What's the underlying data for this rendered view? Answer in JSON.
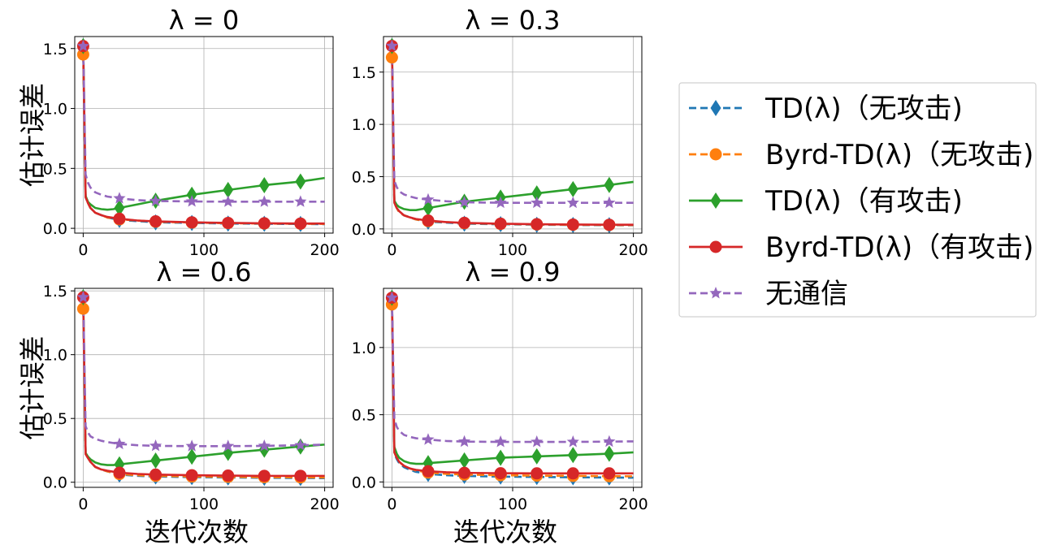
{
  "colors": {
    "td_no_attack": "#1f77b4",
    "byrd_no_attack": "#ff7f0e",
    "td_attack": "#2ca02c",
    "byrd_attack": "#d62728",
    "no_comm": "#9467bd"
  },
  "legend": {
    "items": [
      {
        "label": "TD(λ)（无攻击)",
        "color": "#1f77b4",
        "marker": "diamond",
        "dash": true
      },
      {
        "label": "Byrd-TD(λ)（无攻击)",
        "color": "#ff7f0e",
        "marker": "circle",
        "dash": true
      },
      {
        "label": "TD(λ)（有攻击)",
        "color": "#2ca02c",
        "marker": "diamond",
        "dash": false
      },
      {
        "label": "Byrd-TD(λ)（有攻击)",
        "color": "#d62728",
        "marker": "circle",
        "dash": false
      },
      {
        "label": "无通信",
        "color": "#9467bd",
        "marker": "star",
        "dash": true
      }
    ]
  },
  "chart_data": [
    {
      "type": "line",
      "title": "λ = 0",
      "ylabel": "估计误差",
      "xlabel": "",
      "xlim": [
        -7,
        207
      ],
      "ylim": [
        -0.04,
        1.6
      ],
      "xticks": [
        0,
        100,
        200
      ],
      "yticks": [
        0.0,
        0.5,
        1.0,
        1.5
      ],
      "xtick_labels": [
        "0",
        "100",
        "200"
      ],
      "ytick_labels": [
        "0.0",
        "0.5",
        "1.0",
        "1.5"
      ],
      "grid": true,
      "marker_x": [
        0,
        30,
        60,
        90,
        120,
        150,
        180
      ],
      "series": [
        {
          "name": "TD(λ)（无攻击)",
          "x": [
            0,
            2,
            4,
            6,
            10,
            15,
            20,
            30,
            45,
            60,
            90,
            120,
            150,
            180,
            200
          ],
          "y": [
            1.52,
            0.26,
            0.21,
            0.17,
            0.13,
            0.11,
            0.09,
            0.07,
            0.06,
            0.05,
            0.045,
            0.04,
            0.038,
            0.036,
            0.035
          ]
        },
        {
          "name": "Byrd-TD(λ)（无攻击)",
          "x": [
            0,
            2,
            4,
            6,
            10,
            15,
            20,
            30,
            45,
            60,
            90,
            120,
            150,
            180,
            200
          ],
          "y": [
            1.45,
            0.26,
            0.21,
            0.17,
            0.13,
            0.11,
            0.09,
            0.075,
            0.065,
            0.055,
            0.048,
            0.043,
            0.04,
            0.038,
            0.037
          ]
        },
        {
          "name": "TD(λ)（有攻击)",
          "x": [
            0,
            2,
            4,
            6,
            10,
            15,
            20,
            25,
            30,
            45,
            60,
            90,
            120,
            150,
            180,
            200
          ],
          "y": [
            1.52,
            0.27,
            0.22,
            0.2,
            0.17,
            0.16,
            0.155,
            0.16,
            0.17,
            0.2,
            0.23,
            0.28,
            0.32,
            0.36,
            0.39,
            0.42
          ]
        },
        {
          "name": "Byrd-TD(λ)（有攻击)",
          "x": [
            0,
            2,
            4,
            6,
            10,
            15,
            20,
            30,
            45,
            60,
            90,
            120,
            150,
            180,
            200
          ],
          "y": [
            1.52,
            0.26,
            0.21,
            0.17,
            0.13,
            0.11,
            0.095,
            0.08,
            0.065,
            0.058,
            0.05,
            0.045,
            0.042,
            0.04,
            0.04
          ]
        },
        {
          "name": "无通信",
          "x": [
            0,
            2,
            4,
            6,
            10,
            15,
            20,
            30,
            45,
            60,
            90,
            120,
            150,
            180,
            200
          ],
          "y": [
            1.52,
            0.45,
            0.38,
            0.34,
            0.3,
            0.28,
            0.265,
            0.25,
            0.235,
            0.228,
            0.224,
            0.222,
            0.222,
            0.222,
            0.222
          ]
        }
      ]
    },
    {
      "type": "line",
      "title": "λ = 0.3",
      "ylabel": "",
      "xlabel": "",
      "xlim": [
        -7,
        207
      ],
      "ylim": [
        -0.04,
        1.84
      ],
      "xticks": [
        0,
        100,
        200
      ],
      "yticks": [
        0.0,
        0.5,
        1.0,
        1.5
      ],
      "xtick_labels": [
        "0",
        "100",
        "200"
      ],
      "ytick_labels": [
        "0.0",
        "0.5",
        "1.0",
        "1.5"
      ],
      "grid": true,
      "marker_x": [
        0,
        30,
        60,
        90,
        120,
        150,
        180
      ],
      "series": [
        {
          "name": "TD(λ)（无攻击)",
          "x": [
            0,
            2,
            4,
            6,
            10,
            15,
            20,
            30,
            45,
            60,
            90,
            120,
            150,
            180,
            200
          ],
          "y": [
            1.75,
            0.25,
            0.2,
            0.16,
            0.13,
            0.11,
            0.09,
            0.07,
            0.06,
            0.05,
            0.045,
            0.04,
            0.038,
            0.036,
            0.035
          ]
        },
        {
          "name": "Byrd-TD(λ)（无攻击)",
          "x": [
            0,
            2,
            4,
            6,
            10,
            15,
            20,
            30,
            45,
            60,
            90,
            120,
            150,
            180,
            200
          ],
          "y": [
            1.64,
            0.25,
            0.2,
            0.16,
            0.13,
            0.11,
            0.09,
            0.075,
            0.065,
            0.055,
            0.048,
            0.043,
            0.04,
            0.038,
            0.037
          ]
        },
        {
          "name": "TD(λ)（有攻击)",
          "x": [
            0,
            2,
            4,
            6,
            10,
            15,
            20,
            25,
            30,
            45,
            60,
            90,
            120,
            150,
            180,
            200
          ],
          "y": [
            1.75,
            0.27,
            0.23,
            0.21,
            0.19,
            0.18,
            0.18,
            0.19,
            0.2,
            0.23,
            0.26,
            0.3,
            0.34,
            0.38,
            0.42,
            0.45
          ]
        },
        {
          "name": "Byrd-TD(λ)（有攻击)",
          "x": [
            0,
            2,
            4,
            6,
            10,
            15,
            20,
            30,
            45,
            60,
            90,
            120,
            150,
            180,
            200
          ],
          "y": [
            1.75,
            0.25,
            0.2,
            0.17,
            0.13,
            0.11,
            0.095,
            0.08,
            0.065,
            0.058,
            0.05,
            0.045,
            0.042,
            0.04,
            0.04
          ]
        },
        {
          "name": "无通信",
          "x": [
            0,
            2,
            4,
            6,
            10,
            15,
            20,
            30,
            45,
            60,
            90,
            120,
            150,
            180,
            200
          ],
          "y": [
            1.75,
            0.46,
            0.4,
            0.36,
            0.33,
            0.31,
            0.295,
            0.28,
            0.265,
            0.255,
            0.25,
            0.25,
            0.25,
            0.25,
            0.25
          ]
        }
      ]
    },
    {
      "type": "line",
      "title": "λ = 0.6",
      "ylabel": "估计误差",
      "xlabel": "迭代次数",
      "xlim": [
        -7,
        207
      ],
      "ylim": [
        -0.04,
        1.52
      ],
      "xticks": [
        0,
        100,
        200
      ],
      "yticks": [
        0.0,
        0.5,
        1.0,
        1.5
      ],
      "xtick_labels": [
        "0",
        "100",
        "200"
      ],
      "ytick_labels": [
        "0.0",
        "0.5",
        "1.0",
        "1.5"
      ],
      "grid": true,
      "marker_x": [
        0,
        30,
        60,
        90,
        120,
        150,
        180
      ],
      "series": [
        {
          "name": "TD(λ)（无攻击)",
          "x": [
            0,
            2,
            4,
            6,
            10,
            15,
            20,
            30,
            45,
            60,
            90,
            120,
            150,
            180,
            200
          ],
          "y": [
            1.45,
            0.22,
            0.19,
            0.16,
            0.12,
            0.1,
            0.085,
            0.06,
            0.05,
            0.045,
            0.04,
            0.037,
            0.035,
            0.033,
            0.032
          ]
        },
        {
          "name": "Byrd-TD(λ)（无攻击)",
          "x": [
            0,
            2,
            4,
            6,
            10,
            15,
            20,
            30,
            45,
            60,
            90,
            120,
            150,
            180,
            200
          ],
          "y": [
            1.36,
            0.22,
            0.19,
            0.16,
            0.12,
            0.1,
            0.085,
            0.065,
            0.055,
            0.05,
            0.045,
            0.042,
            0.04,
            0.038,
            0.037
          ]
        },
        {
          "name": "TD(λ)（有攻击)",
          "x": [
            0,
            2,
            4,
            6,
            10,
            15,
            20,
            25,
            30,
            45,
            60,
            90,
            120,
            150,
            180,
            200
          ],
          "y": [
            1.45,
            0.23,
            0.2,
            0.18,
            0.155,
            0.14,
            0.135,
            0.135,
            0.14,
            0.155,
            0.17,
            0.2,
            0.23,
            0.255,
            0.28,
            0.295
          ]
        },
        {
          "name": "Byrd-TD(λ)（有攻击)",
          "x": [
            0,
            2,
            4,
            6,
            10,
            15,
            20,
            30,
            45,
            60,
            90,
            120,
            150,
            180,
            200
          ],
          "y": [
            1.45,
            0.22,
            0.19,
            0.16,
            0.12,
            0.1,
            0.09,
            0.075,
            0.065,
            0.06,
            0.055,
            0.052,
            0.05,
            0.05,
            0.05
          ]
        },
        {
          "name": "无通信",
          "x": [
            0,
            2,
            4,
            6,
            10,
            15,
            20,
            30,
            45,
            60,
            90,
            120,
            150,
            180,
            200
          ],
          "y": [
            1.45,
            0.44,
            0.39,
            0.36,
            0.34,
            0.325,
            0.315,
            0.3,
            0.29,
            0.285,
            0.283,
            0.283,
            0.285,
            0.29,
            0.295
          ]
        }
      ]
    },
    {
      "type": "line",
      "title": "λ = 0.9",
      "ylabel": "",
      "xlabel": "迭代次数",
      "xlim": [
        -7,
        207
      ],
      "ylim": [
        -0.04,
        1.44
      ],
      "xticks": [
        0,
        100,
        200
      ],
      "yticks": [
        0.0,
        0.5,
        1.0
      ],
      "xtick_labels": [
        "0",
        "100",
        "200"
      ],
      "ytick_labels": [
        "0.0",
        "0.5",
        "1.0"
      ],
      "grid": true,
      "marker_x": [
        0,
        30,
        60,
        90,
        120,
        150,
        180
      ],
      "series": [
        {
          "name": "TD(λ)（无攻击)",
          "x": [
            0,
            2,
            4,
            6,
            10,
            15,
            20,
            30,
            45,
            60,
            90,
            120,
            150,
            180,
            200
          ],
          "y": [
            1.37,
            0.21,
            0.17,
            0.14,
            0.11,
            0.09,
            0.075,
            0.06,
            0.05,
            0.045,
            0.04,
            0.037,
            0.035,
            0.033,
            0.032
          ]
        },
        {
          "name": "Byrd-TD(λ)（无攻击)",
          "x": [
            0,
            2,
            4,
            6,
            10,
            15,
            20,
            30,
            45,
            60,
            90,
            120,
            150,
            180,
            200
          ],
          "y": [
            1.32,
            0.22,
            0.18,
            0.15,
            0.12,
            0.1,
            0.085,
            0.07,
            0.06,
            0.055,
            0.05,
            0.047,
            0.045,
            0.043,
            0.042
          ]
        },
        {
          "name": "TD(λ)（有攻击)",
          "x": [
            0,
            2,
            4,
            6,
            10,
            15,
            20,
            25,
            30,
            45,
            60,
            90,
            120,
            150,
            180,
            200
          ],
          "y": [
            1.37,
            0.26,
            0.21,
            0.18,
            0.155,
            0.14,
            0.135,
            0.135,
            0.14,
            0.15,
            0.16,
            0.18,
            0.19,
            0.2,
            0.21,
            0.22
          ]
        },
        {
          "name": "Byrd-TD(λ)（有攻击)",
          "x": [
            0,
            2,
            4,
            6,
            10,
            15,
            20,
            30,
            45,
            60,
            90,
            120,
            150,
            180,
            200
          ],
          "y": [
            1.37,
            0.22,
            0.18,
            0.15,
            0.12,
            0.1,
            0.09,
            0.08,
            0.072,
            0.068,
            0.065,
            0.064,
            0.064,
            0.064,
            0.064
          ]
        },
        {
          "name": "无通信",
          "x": [
            0,
            2,
            4,
            6,
            10,
            15,
            20,
            30,
            45,
            60,
            90,
            120,
            150,
            180,
            200
          ],
          "y": [
            1.37,
            0.47,
            0.41,
            0.38,
            0.35,
            0.335,
            0.325,
            0.315,
            0.305,
            0.3,
            0.298,
            0.298,
            0.298,
            0.3,
            0.302
          ]
        }
      ]
    }
  ]
}
